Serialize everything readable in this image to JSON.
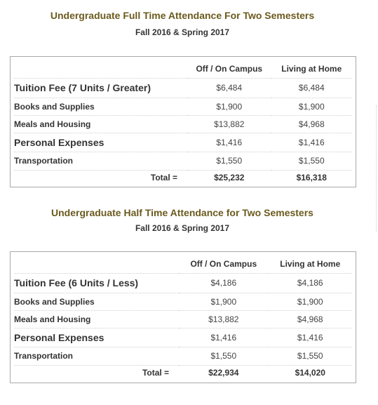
{
  "full_time": {
    "title": "Undergraduate Full Time Attendance For Two Semesters",
    "subtitle": "Fall 2016 & Spring 2017",
    "columns": [
      "",
      "Off / On Campus",
      "Living at Home"
    ],
    "rows": [
      {
        "label": "Tuition Fee (7 Units / Greater)",
        "campus": "$6,484",
        "home": "$6,484"
      },
      {
        "label": "Books and Supplies",
        "campus": "$1,900",
        "home": "$1,900"
      },
      {
        "label": "Meals and Housing",
        "campus": "$13,882",
        "home": "$4,968"
      },
      {
        "label": "Personal Expenses",
        "campus": "$1,416",
        "home": "$1,416"
      },
      {
        "label": "Transportation",
        "campus": "$1,550",
        "home": "$1,550"
      }
    ],
    "total": {
      "label": "Total =",
      "campus": "$25,232",
      "home": "$16,318"
    }
  },
  "half_time": {
    "title": "Undergraduate Half Time Attendance for Two Semesters",
    "subtitle": "Fall 2016 & Spring 2017",
    "columns": [
      "",
      "Off / On Campus",
      "Living at Home"
    ],
    "rows": [
      {
        "label": "Tuition Fee (6 Units / Less)",
        "campus": "$4,186",
        "home": "$4,186"
      },
      {
        "label": "Books and Supplies",
        "campus": "$1,900",
        "home": "$1,900"
      },
      {
        "label": "Meals and Housing",
        "campus": "$13,882",
        "home": "$4,968"
      },
      {
        "label": "Personal Expenses",
        "campus": "$1,416",
        "home": "$1,416"
      },
      {
        "label": "Transportation",
        "campus": "$1,550",
        "home": "$1,550"
      }
    ],
    "total": {
      "label": "Total =",
      "campus": "$22,934",
      "home": "$14,020"
    }
  },
  "colors": {
    "title": "#6b5a1e",
    "border": "#a8a8a8"
  }
}
